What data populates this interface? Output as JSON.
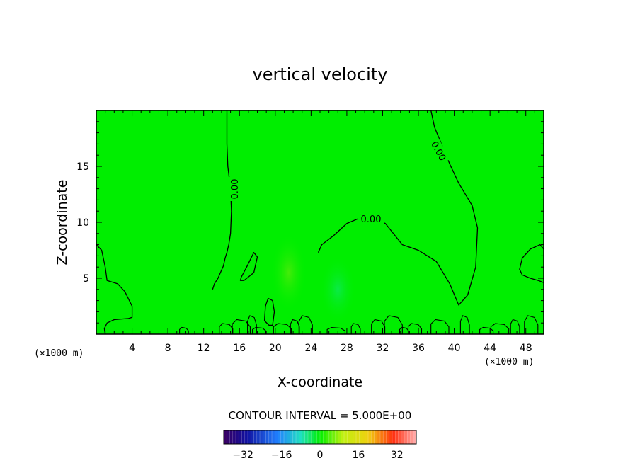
{
  "chart_data": {
    "type": "contour",
    "title": "vertical velocity",
    "xlabel": "X-coordinate",
    "ylabel": "Z-coordinate",
    "x_unit_left": "(×1000 m)",
    "x_unit_right": "(×1000 m)",
    "xlim": [
      0,
      50
    ],
    "ylim": [
      0,
      20
    ],
    "x_ticks": [
      4,
      8,
      12,
      16,
      20,
      24,
      28,
      32,
      36,
      40,
      44,
      48
    ],
    "x_tick_labels": [
      "4",
      "8",
      "12",
      "16",
      "20",
      "24",
      "28",
      "32",
      "36",
      "40",
      "44",
      "48"
    ],
    "y_ticks": [
      5,
      10,
      15
    ],
    "y_tick_labels": [
      "5",
      "10",
      "15"
    ],
    "contour_label": "0.00",
    "contour_interval_text": "CONTOUR INTERVAL = 5.000E+00",
    "colorbar": {
      "range": [
        -40,
        40
      ],
      "ticks": [
        -32,
        -16,
        0,
        16,
        32
      ],
      "tick_labels": [
        "−32",
        "−16",
        "0",
        "16",
        "32"
      ]
    },
    "background_color": "#00ee00",
    "contour_levels": [
      0
    ],
    "zero_contours": [
      {
        "x": [
          14.6,
          14.6,
          14.7,
          15.0,
          15.1,
          15.0,
          14.8,
          14.6,
          14.4,
          14.2,
          13.6,
          13.2,
          13.0
        ],
        "y": [
          20,
          17,
          15,
          13,
          11,
          9,
          8,
          7.3,
          6.8,
          6.1,
          5.0,
          4.5,
          4.0
        ]
      },
      {
        "x": [
          24.8,
          25.2,
          26.5,
          28.0,
          29.5,
          31.0,
          32.3,
          33.0,
          34.2,
          36.0,
          38.0,
          39.5,
          40.5,
          41.5,
          42.4,
          42.6,
          42.0,
          40.5,
          39.5,
          37.8,
          37.4
        ],
        "y": [
          7.3,
          8.0,
          8.8,
          9.9,
          10.4,
          10.3,
          9.9,
          9.2,
          8.0,
          7.5,
          6.5,
          4.5,
          2.6,
          3.5,
          6.0,
          9.5,
          11.5,
          13.5,
          15.2,
          18.5,
          20
        ]
      },
      {
        "x": [
          0,
          0.6,
          1.0,
          1.2,
          2.4,
          3.2,
          4.0,
          4.0,
          3.6,
          2.0,
          1.2,
          0.9,
          1.0
        ],
        "y": [
          8.0,
          7.5,
          6.0,
          4.8,
          4.5,
          3.8,
          2.5,
          1.5,
          1.4,
          1.3,
          1.0,
          0.5,
          0
        ]
      },
      {
        "x": [
          16.2,
          16.8,
          17.6,
          18.0,
          17.6,
          16.5,
          16.1,
          16.2
        ],
        "y": [
          5.1,
          6.0,
          7.3,
          6.9,
          5.5,
          4.8,
          4.8,
          5.1
        ]
      },
      {
        "x": [
          18.8,
          19.3,
          19.7,
          19.9,
          19.7,
          19.2,
          18.9,
          18.8
        ],
        "y": [
          1.2,
          0.8,
          0.8,
          2.0,
          3.0,
          3.2,
          2.5,
          1.2
        ]
      },
      {
        "x": [
          50,
          49.6,
          48.5,
          47.6,
          47.3,
          47.6,
          48.5,
          49.4,
          50
        ],
        "y": [
          7.6,
          8.0,
          7.6,
          6.8,
          5.8,
          5.3,
          5.0,
          4.8,
          4.6
        ]
      }
    ],
    "color_patches": [
      {
        "x": 21.5,
        "y": 5.5,
        "rx": 2.0,
        "ry": 3.5,
        "value": 3
      },
      {
        "x": 27.0,
        "y": 4.0,
        "rx": 2.0,
        "ry": 3.0,
        "value": -3
      }
    ]
  }
}
